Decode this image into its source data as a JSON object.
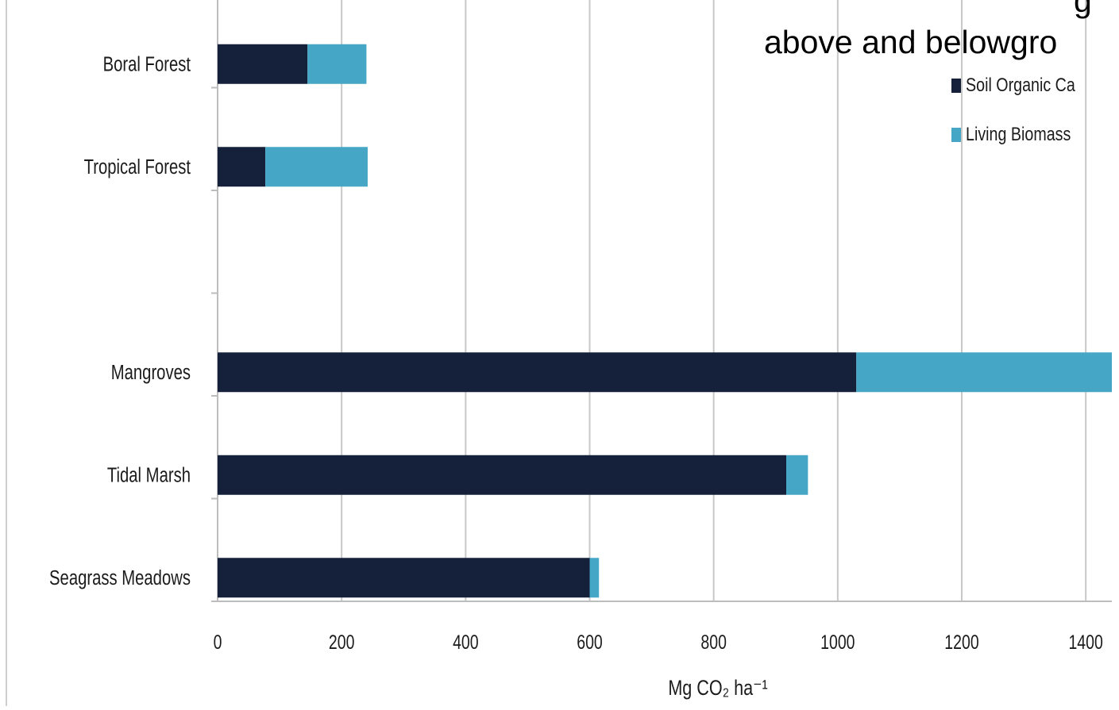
{
  "overlay": {
    "heading_fragment": "g",
    "heading_line": "above and belowgro"
  },
  "chart_data": {
    "type": "bar",
    "orientation": "horizontal",
    "stacked": true,
    "categories": [
      "Boral Forest",
      "Tropical Forest",
      "",
      "Mangroves",
      "Tidal Marsh",
      "Seagrass Meadows"
    ],
    "series": [
      {
        "name": "Soil Organic Ca",
        "color": "#15213a",
        "values": [
          145,
          77,
          null,
          1030,
          917,
          600
        ]
      },
      {
        "name": "Living Biomass",
        "color": "#45a6c6",
        "values": [
          95,
          165,
          null,
          420,
          35,
          15
        ]
      }
    ],
    "xlabel": "Mg CO₂ ha⁻¹",
    "xlim": [
      0,
      1440
    ],
    "xticks": [
      0,
      200,
      400,
      600,
      800,
      1000,
      1200,
      1400
    ],
    "grid": true,
    "legend_position": "top-right"
  }
}
